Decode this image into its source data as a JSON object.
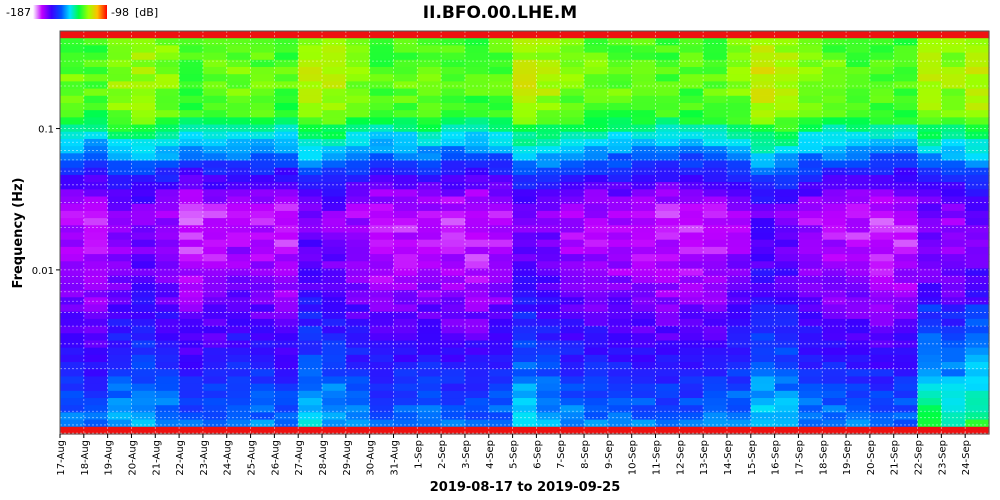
{
  "chart_data": {
    "type": "heatmap",
    "title": "II.BFO.00.LHE.M",
    "xlabel": "2019-08-17 to 2019-09-25",
    "ylabel": "Frequency (Hz)",
    "y_scale": "log",
    "ylim": [
      0.00069,
      0.49
    ],
    "y_ticks": [
      {
        "value": 0.1,
        "label": "0.1"
      },
      {
        "value": 0.01,
        "label": "0.01"
      }
    ],
    "grid": true,
    "colorbar": {
      "min_label": "-187",
      "max_label": "-98",
      "unit": "[dB]",
      "min": -187,
      "max": -98
    },
    "x_dates": [
      "17-Aug",
      "18-Aug",
      "19-Aug",
      "20-Aug",
      "21-Aug",
      "22-Aug",
      "23-Aug",
      "24-Aug",
      "25-Aug",
      "26-Aug",
      "27-Aug",
      "28-Aug",
      "29-Aug",
      "30-Aug",
      "31-Aug",
      "1-Sep",
      "2-Sep",
      "3-Sep",
      "4-Sep",
      "5-Sep",
      "6-Sep",
      "7-Sep",
      "8-Sep",
      "9-Sep",
      "10-Sep",
      "11-Sep",
      "12-Sep",
      "13-Sep",
      "14-Sep",
      "15-Sep",
      "16-Sep",
      "17-Sep",
      "18-Sep",
      "19-Sep",
      "20-Sep",
      "21-Sep",
      "22-Sep",
      "23-Sep",
      "24-Sep"
    ],
    "power_profile_db": [
      {
        "freq": 0.0007,
        "db": -148
      },
      {
        "freq": 0.001,
        "db": -152
      },
      {
        "freq": 0.0015,
        "db": -156
      },
      {
        "freq": 0.002,
        "db": -160
      },
      {
        "freq": 0.003,
        "db": -164
      },
      {
        "freq": 0.005,
        "db": -168
      },
      {
        "freq": 0.008,
        "db": -172
      },
      {
        "freq": 0.015,
        "db": -175
      },
      {
        "freq": 0.025,
        "db": -176
      },
      {
        "freq": 0.035,
        "db": -170
      },
      {
        "freq": 0.05,
        "db": -160
      },
      {
        "freq": 0.07,
        "db": -148
      },
      {
        "freq": 0.09,
        "db": -140
      },
      {
        "freq": 0.12,
        "db": -128
      },
      {
        "freq": 0.2,
        "db": -124
      },
      {
        "freq": 0.4,
        "db": -126
      }
    ],
    "column_offsets_db": [
      0,
      -2,
      4,
      6,
      3,
      -3,
      -1,
      1,
      0,
      -2,
      8,
      6,
      2,
      -2,
      -1,
      0,
      -2,
      -3,
      -1,
      8,
      6,
      2,
      1,
      0,
      -1,
      -2,
      -2,
      -1,
      2,
      10,
      8,
      2,
      0,
      -1,
      -2,
      -2,
      6,
      4,
      8
    ],
    "low_freq_offsets_db": [
      0,
      0,
      0,
      0,
      0,
      0,
      0,
      0,
      0,
      0,
      0,
      0,
      0,
      0,
      0,
      0,
      0,
      0,
      0,
      2,
      0,
      0,
      0,
      0,
      0,
      0,
      0,
      0,
      0,
      0,
      0,
      0,
      0,
      0,
      0,
      0,
      14,
      10,
      12
    ],
    "edge_bands": "red top and bottom rows"
  }
}
